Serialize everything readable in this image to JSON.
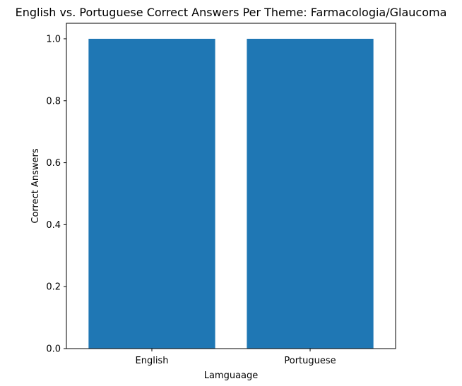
{
  "chart_data": {
    "type": "bar",
    "title": "English vs. Portuguese Correct Answers Per Theme: Farmacologia/Glaucoma",
    "xlabel": "Lamguaage",
    "ylabel": "Correct Answers",
    "categories": [
      "English",
      "Portuguese"
    ],
    "values": [
      1.0,
      1.0
    ],
    "ylim": [
      0,
      1.05
    ],
    "yticks": [
      0.0,
      0.2,
      0.4,
      0.6,
      0.8,
      1.0
    ],
    "ytick_labels": [
      "0.0",
      "0.2",
      "0.4",
      "0.6",
      "0.8",
      "1.0"
    ],
    "bar_color": "#1f77b4",
    "grid": false
  }
}
